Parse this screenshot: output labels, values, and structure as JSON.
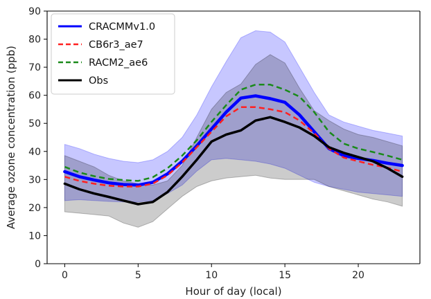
{
  "chart_data": {
    "type": "line",
    "title": "",
    "xlabel": "Hour of day (local)",
    "ylabel": "Average ozone concentration (ppb)",
    "xlim": [
      -1.2,
      24.2
    ],
    "ylim": [
      0,
      90
    ],
    "xticks": [
      0,
      5,
      10,
      15,
      20
    ],
    "yticks": [
      0,
      10,
      20,
      30,
      40,
      50,
      60,
      70,
      80,
      90
    ],
    "grid": false,
    "legend_position": "top-left",
    "x": [
      0,
      1,
      2,
      3,
      4,
      5,
      6,
      7,
      8,
      9,
      10,
      11,
      12,
      13,
      14,
      15,
      16,
      17,
      18,
      19,
      20,
      21,
      22,
      23
    ],
    "series": [
      {
        "name": "CRACMMv1.0",
        "color": "#0000ff",
        "style": "solid",
        "width": 4.5,
        "values": [
          32.8,
          31.0,
          29.8,
          28.8,
          28.2,
          28.0,
          29.0,
          32.0,
          36.5,
          42.0,
          48.0,
          54.0,
          59.0,
          59.8,
          58.8,
          57.5,
          53.0,
          47.0,
          41.0,
          38.5,
          37.5,
          36.8,
          35.8,
          35.0
        ]
      },
      {
        "name": "CB6r3_ae7",
        "color": "#ff2020",
        "style": "dashed",
        "width": 2.5,
        "values": [
          31.0,
          29.5,
          28.5,
          27.8,
          27.5,
          27.5,
          28.5,
          31.5,
          36.0,
          41.5,
          47.0,
          52.5,
          55.8,
          55.8,
          55.0,
          54.0,
          51.0,
          46.5,
          41.0,
          37.8,
          36.5,
          35.2,
          34.2,
          32.8
        ]
      },
      {
        "name": "RACM2_ae6",
        "color": "#1a8a1a",
        "style": "dashed",
        "width": 2.5,
        "values": [
          34.5,
          32.5,
          31.2,
          30.2,
          29.8,
          29.5,
          30.8,
          34.0,
          38.5,
          44.0,
          50.5,
          56.5,
          62.0,
          63.8,
          63.8,
          62.0,
          59.5,
          54.0,
          47.0,
          42.8,
          41.0,
          39.8,
          38.5,
          37.0
        ]
      },
      {
        "name": "Obs",
        "color": "#000000",
        "style": "solid",
        "width": 3.5,
        "values": [
          28.5,
          26.5,
          25.0,
          23.8,
          22.5,
          21.2,
          22.0,
          25.5,
          31.0,
          37.0,
          43.5,
          46.0,
          47.5,
          51.0,
          52.2,
          50.5,
          48.5,
          45.5,
          41.5,
          39.5,
          38.0,
          36.5,
          34.0,
          31.0
        ]
      }
    ],
    "bands": [
      {
        "of": "CRACMMv1.0",
        "color": "#0000ff",
        "opacity": 0.22,
        "lower": [
          22.5,
          22.8,
          22.5,
          22.2,
          22.0,
          22.0,
          22.5,
          25.0,
          28.0,
          33.0,
          37.0,
          37.5,
          37.0,
          36.5,
          35.5,
          34.0,
          31.5,
          29.0,
          27.5,
          26.5,
          25.5,
          25.0,
          24.5,
          24.0
        ],
        "upper": [
          42.5,
          41.0,
          39.0,
          37.5,
          36.5,
          36.0,
          37.0,
          40.0,
          45.0,
          53.0,
          63.0,
          72.0,
          80.5,
          83.0,
          82.5,
          79.0,
          70.0,
          61.0,
          53.0,
          50.5,
          49.0,
          47.5,
          46.5,
          45.5
        ]
      },
      {
        "of": "Obs",
        "color": "#000000",
        "opacity": 0.2,
        "lower": [
          18.5,
          18.0,
          17.5,
          17.0,
          14.5,
          13.0,
          15.0,
          19.5,
          24.0,
          27.5,
          29.5,
          30.5,
          31.0,
          31.5,
          30.5,
          30.0,
          30.0,
          30.0,
          27.5,
          26.0,
          24.5,
          23.0,
          22.0,
          20.5
        ],
        "upper": [
          38.5,
          36.5,
          34.5,
          31.5,
          29.5,
          28.5,
          28.0,
          29.5,
          35.0,
          45.0,
          55.0,
          61.0,
          64.0,
          71.0,
          74.5,
          71.5,
          62.5,
          54.5,
          51.0,
          48.0,
          46.0,
          45.0,
          43.5,
          42.0
        ]
      }
    ]
  }
}
